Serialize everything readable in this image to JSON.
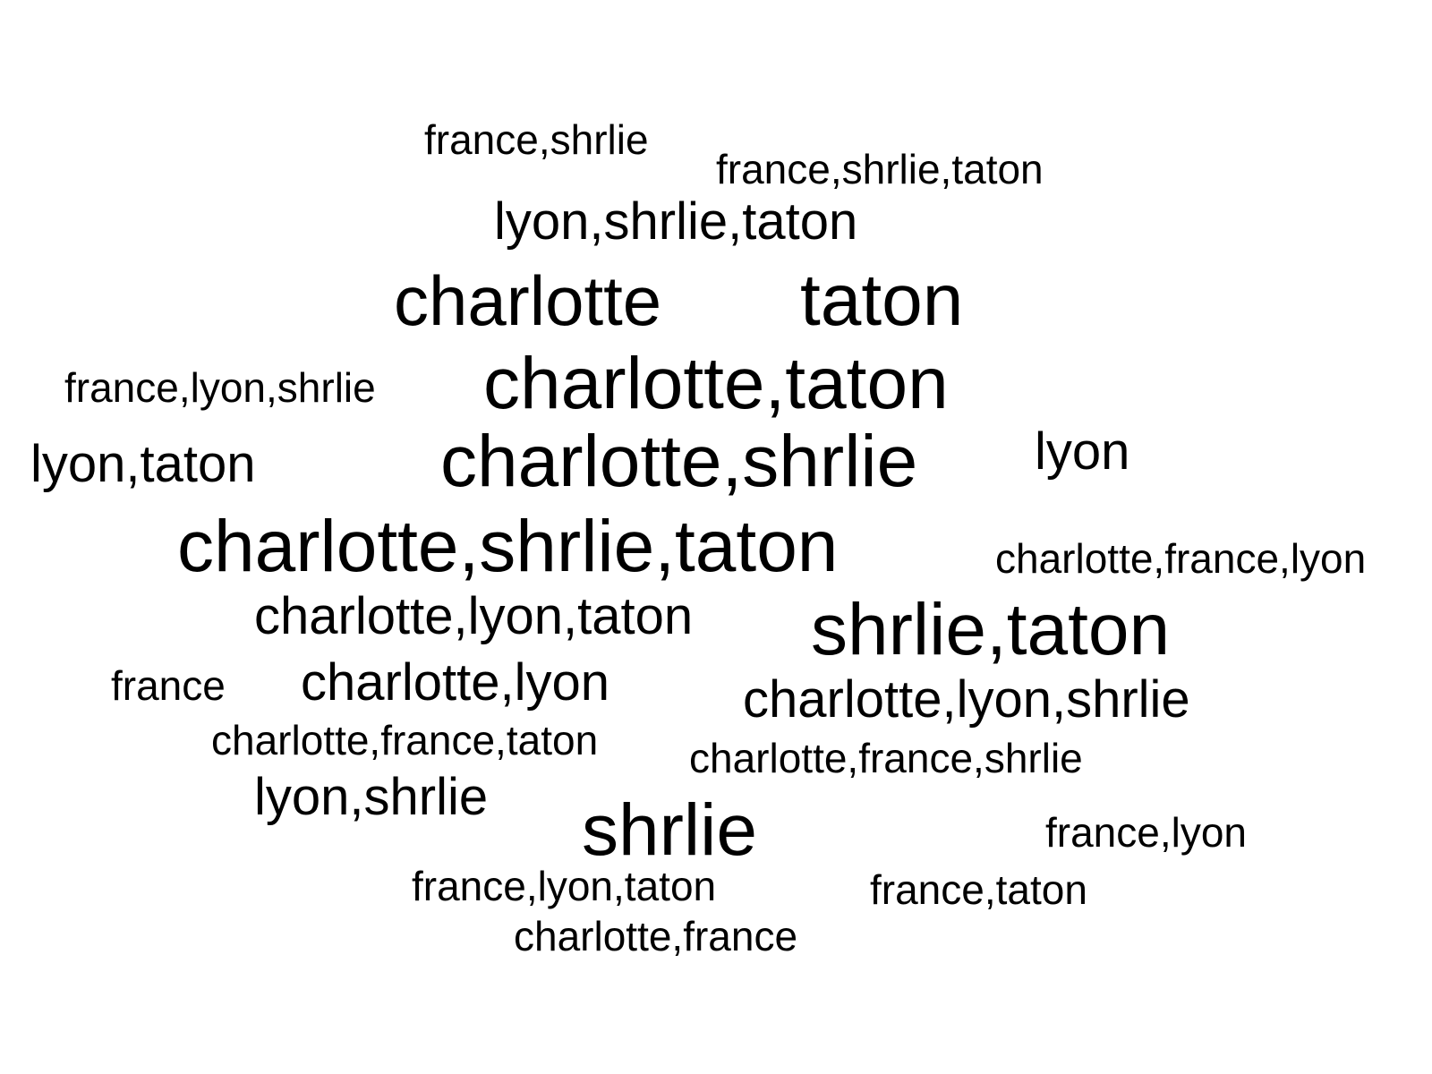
{
  "words": [
    "france,shrlie",
    "france,shrlie,taton",
    "lyon,shrlie,taton",
    "charlotte",
    "taton",
    "france,lyon,shrlie",
    "charlotte,taton",
    "lyon,taton",
    "charlotte,shrlie",
    "lyon",
    "charlotte,shrlie,taton",
    "charlotte,france,lyon",
    "charlotte,lyon,taton",
    "shrlie,taton",
    "france",
    "charlotte,lyon",
    "charlotte,lyon,shrlie",
    "charlotte,france,taton",
    "charlotte,france,shrlie",
    "lyon,shrlie",
    "shrlie",
    "france,lyon",
    "france,lyon,taton",
    "france,taton",
    "charlotte,france"
  ],
  "colors": {
    "text": "#000000",
    "background": "#ffffff"
  }
}
